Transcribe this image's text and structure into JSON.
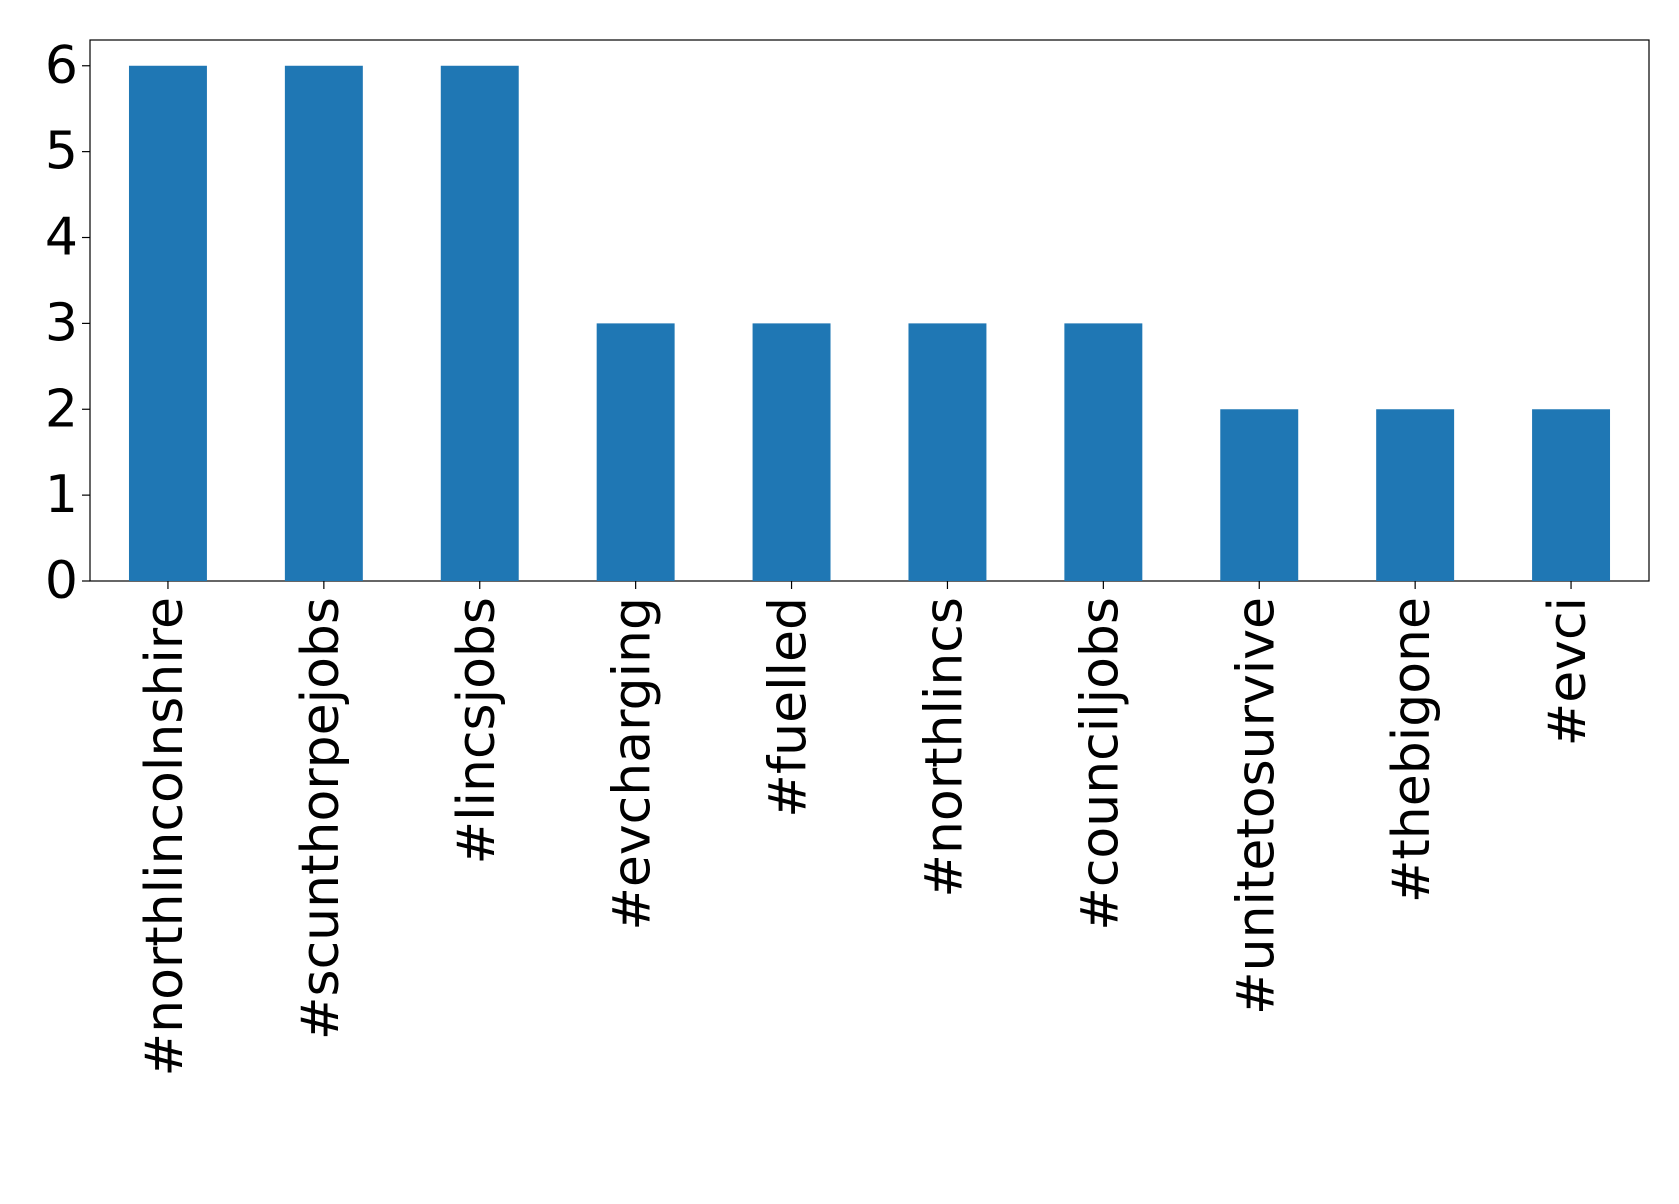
{
  "chart_data": {
    "type": "bar",
    "categories": [
      "#northlincolnshire",
      "#scunthorpejobs",
      "#lincsjobs",
      "#evcharging",
      "#fuelled",
      "#northlincs",
      "#counciljobs",
      "#unitetosurvive",
      "#thebigone",
      "#evci"
    ],
    "values": [
      6,
      6,
      6,
      3,
      3,
      3,
      3,
      2,
      2,
      2
    ],
    "color": "#1f77b4",
    "ylim": [
      0,
      6.3
    ],
    "yticks": [
      0,
      1,
      2,
      3,
      4,
      5,
      6
    ],
    "grid": false
  }
}
